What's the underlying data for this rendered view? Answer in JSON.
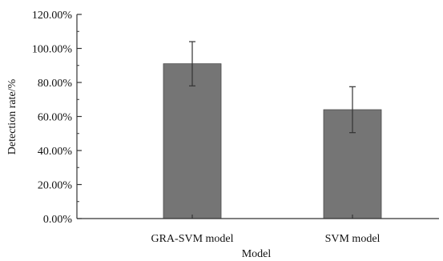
{
  "chart_data": {
    "type": "bar",
    "title": "",
    "xlabel": "Model",
    "ylabel": "Detection rate/%",
    "categories": [
      "GRA-SVM model",
      "SVM model"
    ],
    "values": [
      91.0,
      64.0
    ],
    "error": [
      13.0,
      13.5
    ],
    "ylim": [
      0,
      120
    ],
    "yticks": [
      0,
      20,
      40,
      60,
      80,
      100,
      120
    ],
    "ytick_labels": [
      "0.00%",
      "20.00%",
      "40.00%",
      "60.00%",
      "80.00%",
      "100.00%",
      "120.00%"
    ],
    "grid": false,
    "legend": "none",
    "colors": {
      "bar": "#757575",
      "bar_edge": "#4a4a4a",
      "axis": "#333333",
      "error": "#333333"
    }
  }
}
